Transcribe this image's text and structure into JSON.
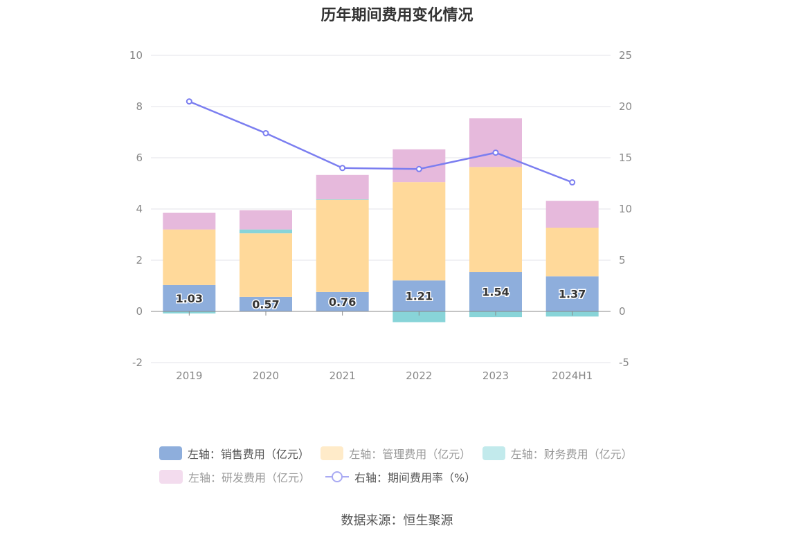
{
  "chart_data": {
    "type": "bar",
    "title": "历年期间费用变化情况",
    "categories": [
      "2019",
      "2020",
      "2021",
      "2022",
      "2023",
      "2024H1"
    ],
    "stacked": true,
    "left_axis": {
      "ylim": [
        -2,
        10
      ],
      "ticks": [
        "10",
        "8",
        "6",
        "4",
        "2",
        "0",
        "-2"
      ]
    },
    "right_axis": {
      "ylim": [
        -5,
        25
      ],
      "ticks": [
        "25",
        "20",
        "15",
        "10",
        "5",
        "0",
        "-5"
      ]
    },
    "series": [
      {
        "name": "左轴：销售费用（亿元）",
        "type": "bar",
        "axis": "left",
        "color": "#8eaedc",
        "values": [
          1.03,
          0.57,
          0.76,
          1.21,
          1.54,
          1.37
        ],
        "labels": [
          "1.03",
          "0.57",
          "0.76",
          "1.21",
          "1.54",
          "1.37"
        ]
      },
      {
        "name": "左轴：管理费用（亿元）",
        "type": "bar",
        "axis": "left",
        "color": "#ffd99a",
        "values": [
          2.17,
          2.48,
          3.6,
          3.84,
          4.1,
          1.9
        ]
      },
      {
        "name": "左轴：财务费用（亿元）",
        "type": "bar",
        "axis": "left",
        "color": "#88d4d8",
        "values": [
          -0.08,
          0.15,
          0.02,
          -0.42,
          -0.22,
          -0.2
        ]
      },
      {
        "name": "左轴：研发费用（亿元）",
        "type": "bar",
        "axis": "left",
        "color": "#e6b9dc",
        "values": [
          0.65,
          0.75,
          0.95,
          1.28,
          1.9,
          1.05
        ]
      },
      {
        "name": "右轴：期间费用率（%）",
        "type": "line",
        "axis": "right",
        "color": "#7b7ef0",
        "values": [
          20.5,
          17.4,
          14.0,
          13.9,
          15.5,
          12.6
        ]
      }
    ],
    "grid": true,
    "legend_position": "bottom"
  },
  "source": "数据来源：恒生聚源"
}
